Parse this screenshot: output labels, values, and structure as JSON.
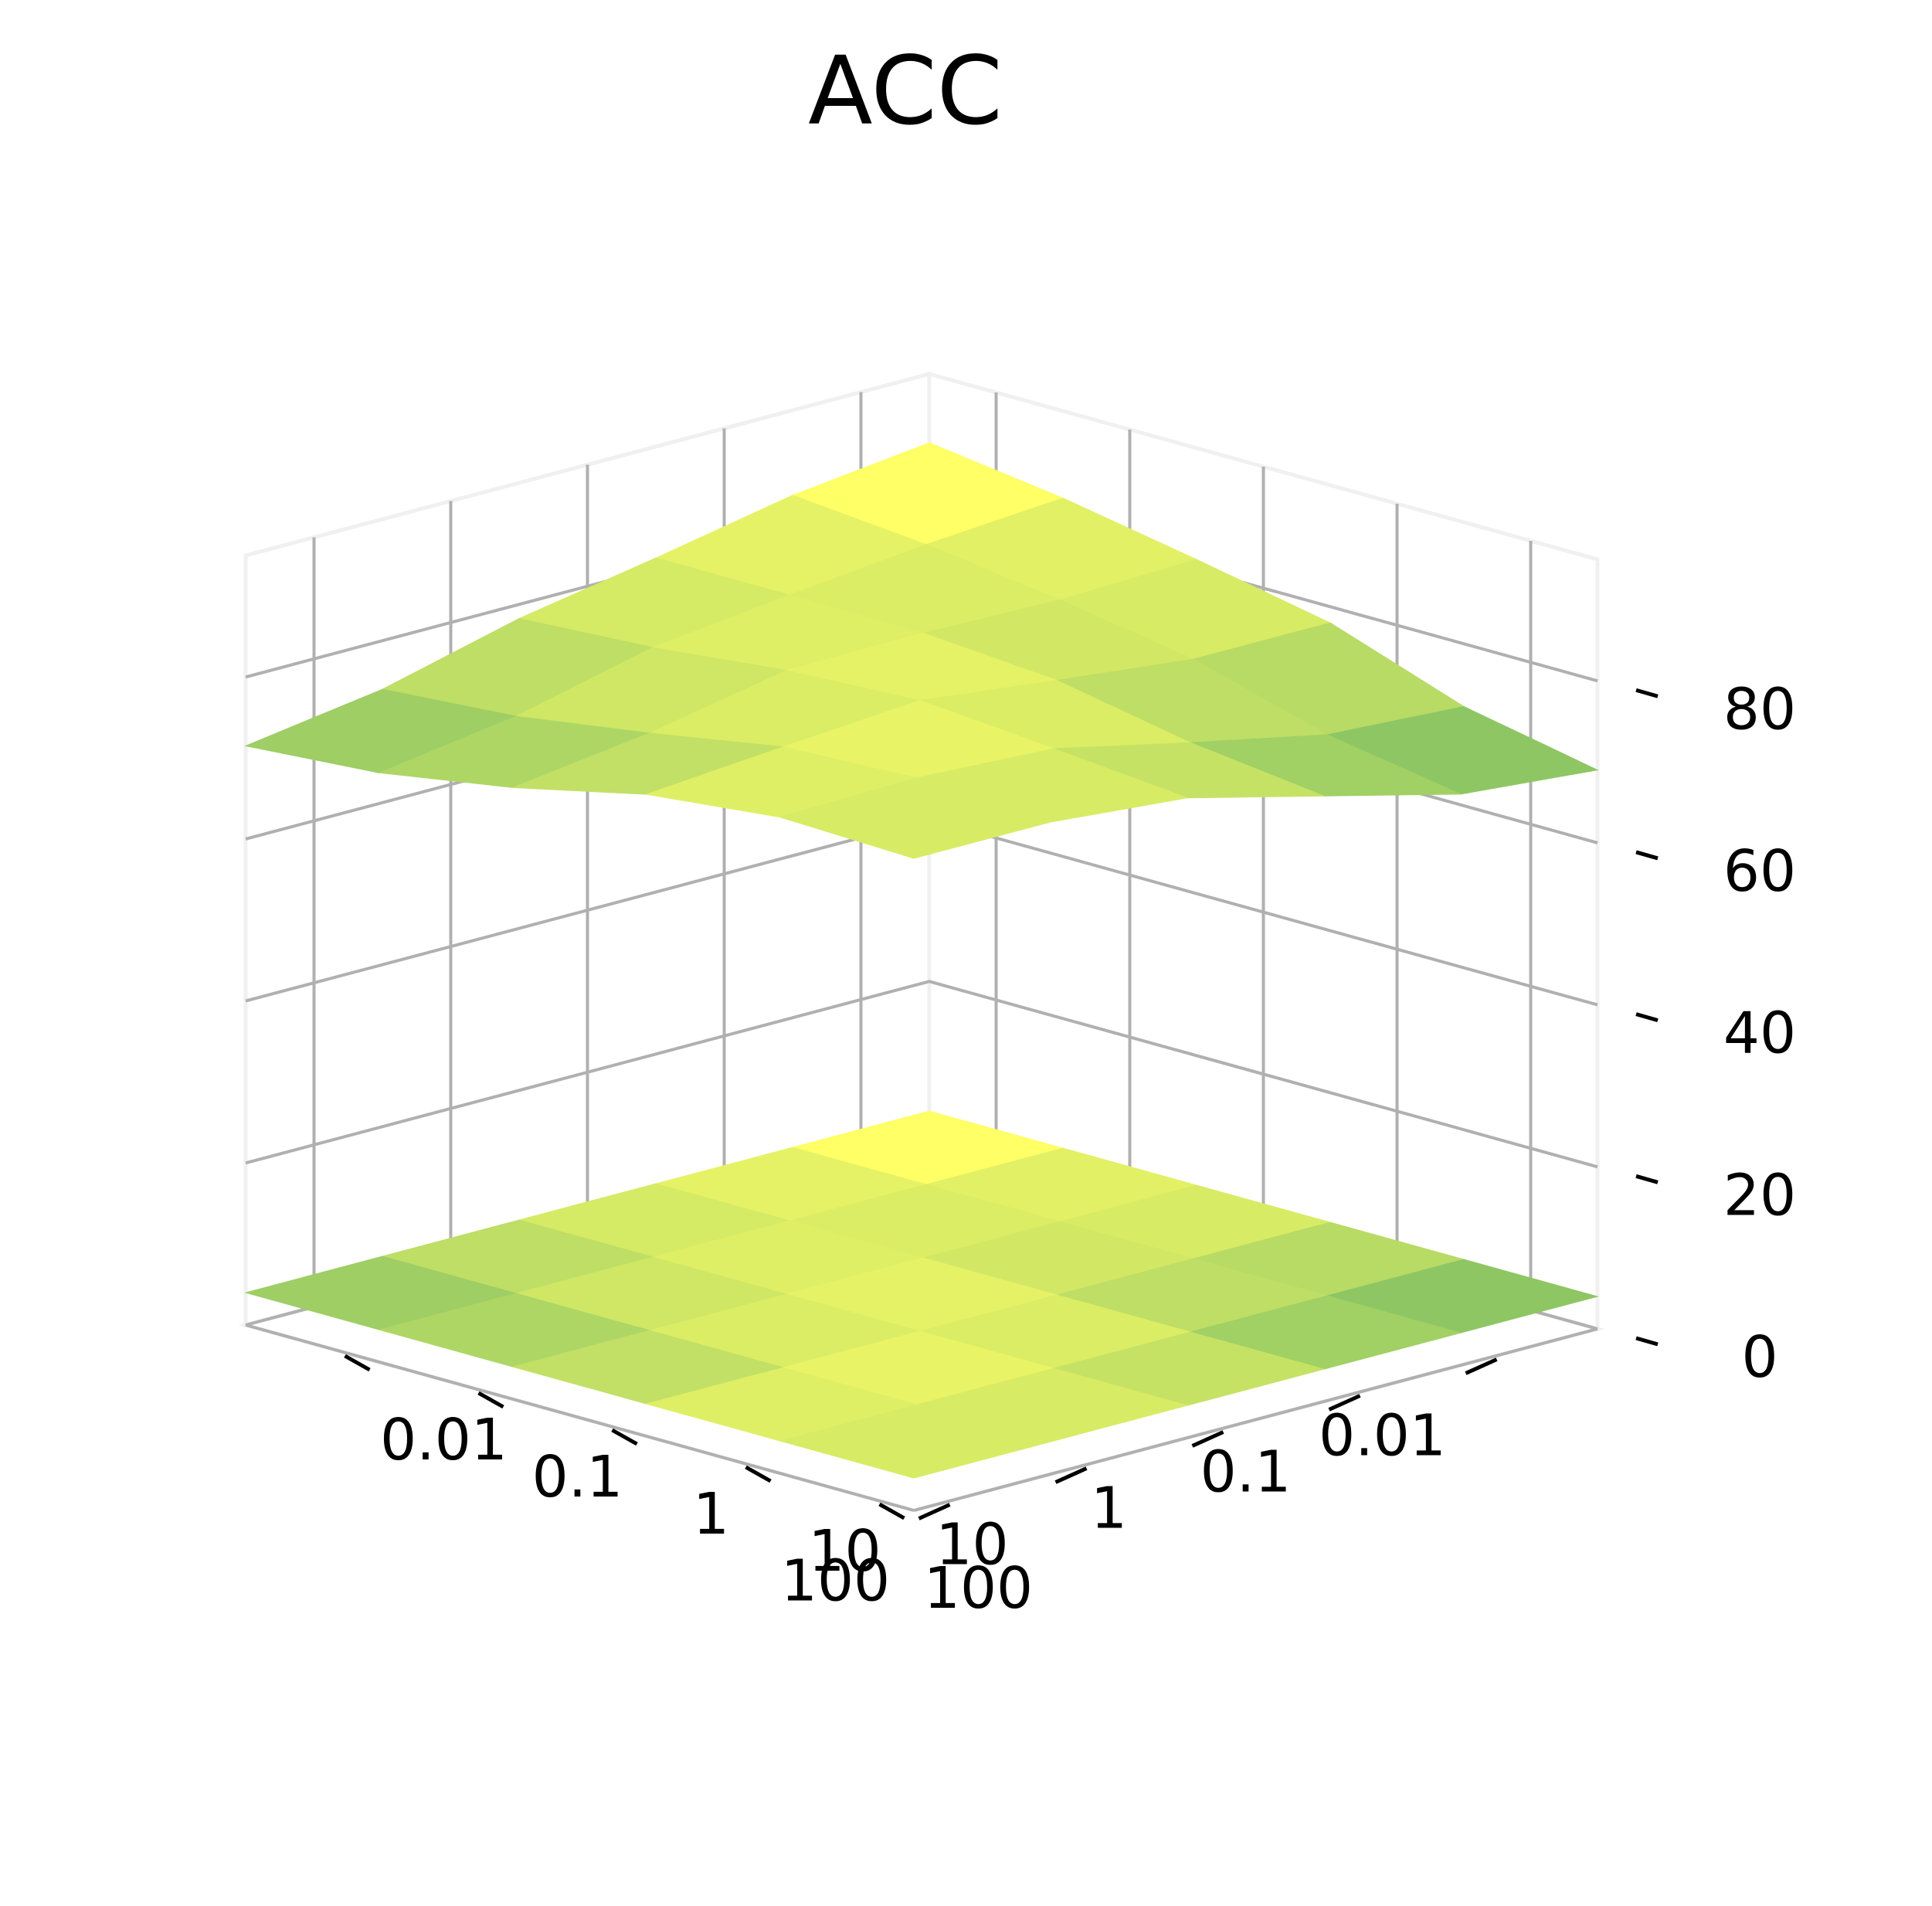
{
  "chart_data": {
    "type": "surface3d",
    "title": "ACC",
    "x_ticks": [
      "0.01",
      "0.1",
      "1",
      "10",
      "100"
    ],
    "y_ticks": [
      "0.01",
      "0.1",
      "1",
      "10",
      "100"
    ],
    "z_ticks": [
      "0",
      "20",
      "40",
      "60",
      "80"
    ],
    "zlim": [
      0,
      95
    ],
    "xlabel": "",
    "ylabel": "",
    "zlabel": "",
    "z_values": [
      [
        86.5,
        82.0,
        80.5,
        75.5,
        69.0
      ],
      [
        82.5,
        81.0,
        79.5,
        76.5,
        72.0
      ],
      [
        80.0,
        81.5,
        82.5,
        81.0,
        77.5
      ],
      [
        76.5,
        79.0,
        81.0,
        83.0,
        80.5
      ],
      [
        71.5,
        74.0,
        77.0,
        81.5,
        80.5
      ]
    ],
    "colormap_range": [
      "#8ec664",
      "#ffff66"
    ],
    "contour_offset": 0,
    "grid": true
  }
}
